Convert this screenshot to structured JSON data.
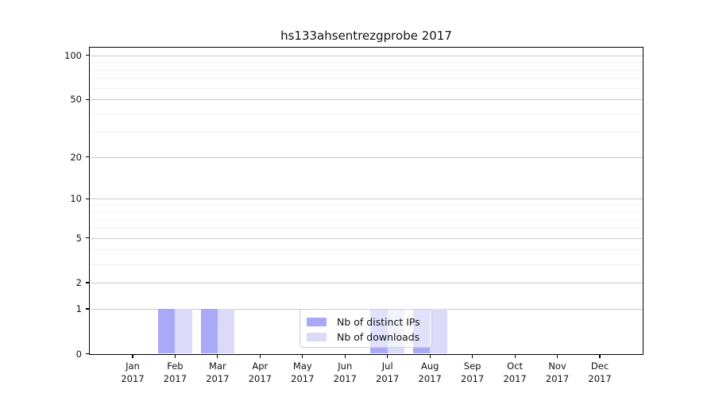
{
  "chart_data": {
    "type": "bar",
    "title": "hs133ahsentrezgprobe 2017",
    "year": "2017",
    "categories": [
      "Jan",
      "Feb",
      "Mar",
      "Apr",
      "May",
      "Jun",
      "Jul",
      "Aug",
      "Sep",
      "Oct",
      "Nov",
      "Dec"
    ],
    "series": [
      {
        "name": "Nb of distinct IPs",
        "color": "#a9a9f7",
        "values": [
          0,
          1,
          1,
          0,
          0,
          0,
          1,
          1,
          0,
          0,
          0,
          0
        ]
      },
      {
        "name": "Nb of downloads",
        "color": "#dbdaf8",
        "values": [
          0,
          1,
          1,
          0,
          0,
          0,
          1,
          1,
          0,
          0,
          0,
          0
        ]
      }
    ],
    "yscale": "log1p",
    "ylim": [
      0,
      112
    ],
    "y_major_ticks": [
      0,
      1,
      2,
      5,
      10,
      20,
      50,
      100
    ],
    "y_minor_ticks": [
      3,
      4,
      6,
      7,
      8,
      9,
      30,
      40,
      60,
      70,
      80,
      90
    ],
    "grid": true,
    "legend_position": "lower center",
    "colors": {
      "major_grid": "#c9c9c9",
      "minor_grid": "#f0f0f0",
      "axis": "#000000",
      "text": "#111111"
    }
  }
}
